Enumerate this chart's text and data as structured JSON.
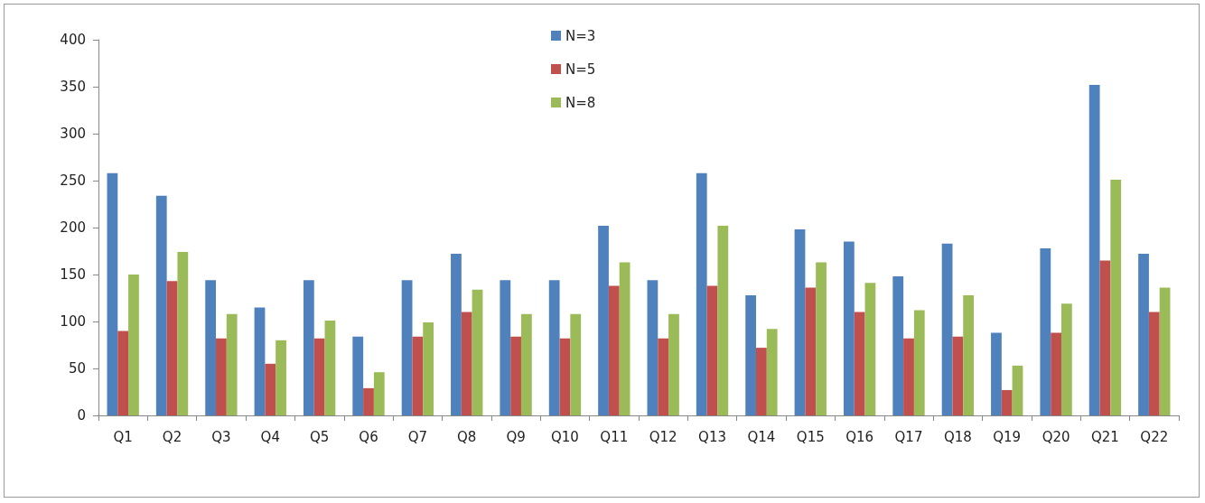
{
  "chart_data": {
    "type": "bar",
    "categories": [
      "Q1",
      "Q2",
      "Q3",
      "Q4",
      "Q5",
      "Q6",
      "Q7",
      "Q8",
      "Q9",
      "Q10",
      "Q11",
      "Q12",
      "Q13",
      "Q14",
      "Q15",
      "Q16",
      "Q17",
      "Q18",
      "Q19",
      "Q20",
      "Q21",
      "Q22"
    ],
    "series": [
      {
        "name": "N=3",
        "color": "#4f81bd",
        "values": [
          258,
          234,
          144,
          115,
          144,
          84,
          144,
          172,
          144,
          144,
          202,
          144,
          258,
          128,
          198,
          185,
          148,
          183,
          88,
          178,
          352,
          172
        ]
      },
      {
        "name": "N=5",
        "color": "#c0504d",
        "values": [
          90,
          143,
          82,
          55,
          82,
          29,
          84,
          110,
          84,
          82,
          138,
          82,
          138,
          72,
          136,
          110,
          82,
          84,
          27,
          88,
          165,
          110
        ]
      },
      {
        "name": "N=8",
        "color": "#9bbb59",
        "values": [
          150,
          174,
          108,
          80,
          101,
          46,
          99,
          134,
          108,
          108,
          163,
          108,
          202,
          92,
          163,
          141,
          112,
          128,
          53,
          119,
          251,
          136
        ]
      }
    ],
    "ylim": [
      0,
      400
    ],
    "yticks": [
      0,
      50,
      100,
      150,
      200,
      250,
      300,
      350,
      400
    ],
    "grid": false,
    "legend": "top"
  }
}
